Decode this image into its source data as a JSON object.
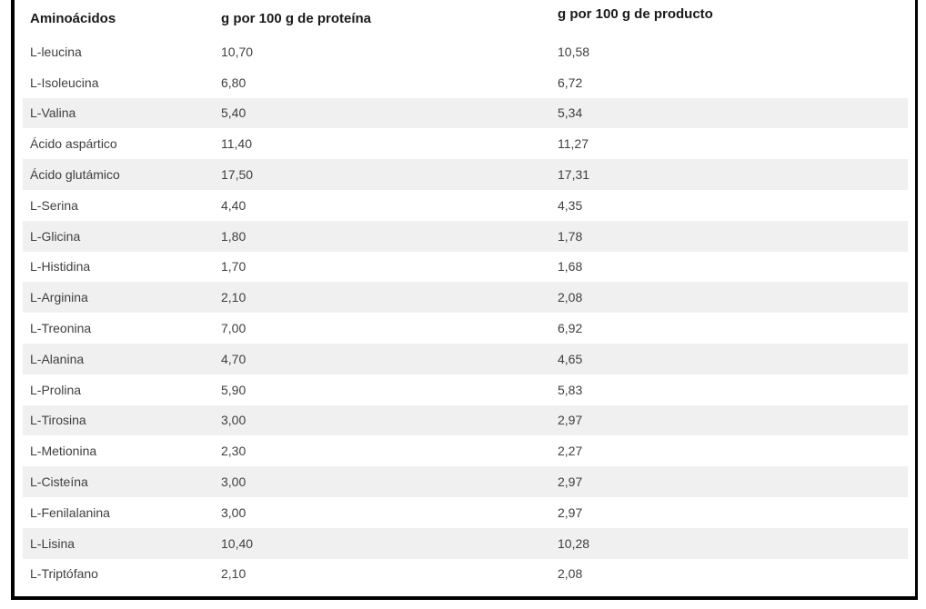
{
  "page": {
    "background": "#ffffff"
  },
  "frame": {
    "border_color": "#000000"
  },
  "table": {
    "stripe_color": "#f0f0f0",
    "text_color": "#3f3f3f",
    "header_text_color": "#1a1a1a",
    "headers": [
      {
        "label": "Aminoácidos"
      },
      {
        "label": "g por 100 g de proteína"
      },
      {
        "label": "g por 100 g de producto"
      }
    ],
    "rows": [
      {
        "name": "L-leucina",
        "per100g_protein": "10,70",
        "per100g_product": "10,58"
      },
      {
        "name": "L-Isoleucina",
        "per100g_protein": "6,80",
        "per100g_product": "6,72"
      },
      {
        "name": "L-Valina",
        "per100g_protein": "5,40",
        "per100g_product": "5,34"
      },
      {
        "name": "Ácido aspártico",
        "per100g_protein": "11,40",
        "per100g_product": "11,27"
      },
      {
        "name": "Ácido glutámico",
        "per100g_protein": "17,50",
        "per100g_product": "17,31"
      },
      {
        "name": "L-Serina",
        "per100g_protein": "4,40",
        "per100g_product": "4,35"
      },
      {
        "name": "L-Glicina",
        "per100g_protein": "1,80",
        "per100g_product": "1,78"
      },
      {
        "name": "L-Histidina",
        "per100g_protein": "1,70",
        "per100g_product": "1,68"
      },
      {
        "name": "L-Arginina",
        "per100g_protein": "2,10",
        "per100g_product": "2,08"
      },
      {
        "name": "L-Treonina",
        "per100g_protein": "7,00",
        "per100g_product": "6,92"
      },
      {
        "name": "L-Alanina",
        "per100g_protein": "4,70",
        "per100g_product": "4,65"
      },
      {
        "name": "L-Prolina",
        "per100g_protein": "5,90",
        "per100g_product": "5,83"
      },
      {
        "name": "L-Tirosina",
        "per100g_protein": "3,00",
        "per100g_product": "2,97"
      },
      {
        "name": "L-Metionina",
        "per100g_protein": "2,30",
        "per100g_product": "2,27"
      },
      {
        "name": "L-Cisteína",
        "per100g_protein": "3,00",
        "per100g_product": "2,97"
      },
      {
        "name": "L-Fenilalanina",
        "per100g_protein": "3,00",
        "per100g_product": "2,97"
      },
      {
        "name": "L-Lisina",
        "per100g_protein": "10,40",
        "per100g_product": "10,28"
      },
      {
        "name": "L-Triptófano",
        "per100g_protein": "2,10",
        "per100g_product": "2,08"
      }
    ]
  },
  "chart_data": {
    "type": "table",
    "title": "Aminoácidos",
    "columns": [
      "Aminoácidos",
      "g por 100 g de proteína",
      "g por 100 g de producto"
    ],
    "rows": [
      [
        "L-leucina",
        10.7,
        10.58
      ],
      [
        "L-Isoleucina",
        6.8,
        6.72
      ],
      [
        "L-Valina",
        5.4,
        5.34
      ],
      [
        "Ácido aspártico",
        11.4,
        11.27
      ],
      [
        "Ácido glutámico",
        17.5,
        17.31
      ],
      [
        "L-Serina",
        4.4,
        4.35
      ],
      [
        "L-Glicina",
        1.8,
        1.78
      ],
      [
        "L-Histidina",
        1.7,
        1.68
      ],
      [
        "L-Arginina",
        2.1,
        2.08
      ],
      [
        "L-Treonina",
        7.0,
        6.92
      ],
      [
        "L-Alanina",
        4.7,
        4.65
      ],
      [
        "L-Prolina",
        5.9,
        5.83
      ],
      [
        "L-Tirosina",
        3.0,
        2.97
      ],
      [
        "L-Metionina",
        2.3,
        2.27
      ],
      [
        "L-Cisteína",
        3.0,
        2.97
      ],
      [
        "L-Fenilalanina",
        3.0,
        2.97
      ],
      [
        "L-Lisina",
        10.4,
        10.28
      ],
      [
        "L-Triptófano",
        2.1,
        2.08
      ]
    ],
    "layout_hints": {
      "striped_rows": true,
      "decimal_separator": ",",
      "grid": false
    }
  }
}
